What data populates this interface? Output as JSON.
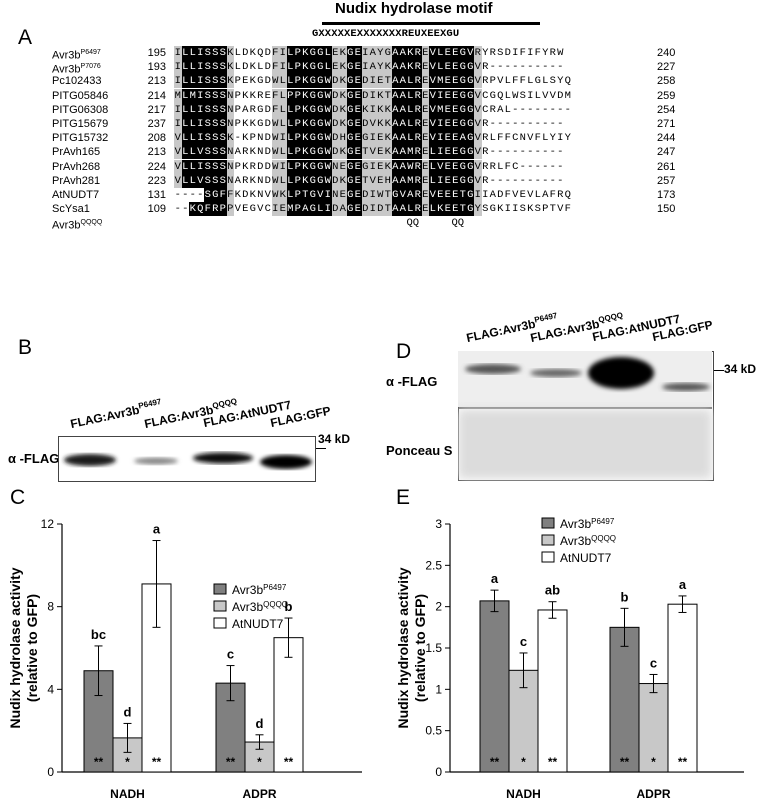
{
  "panelA": {
    "letter": "A",
    "motif_title": "Nudix hydrolase motif",
    "motif_consensus": "GXXXXXEXXXXXXXREUXEEXGU",
    "rows": [
      {
        "name": "Avr3b",
        "sup": "P6497",
        "start": "195",
        "seq": "ILLISSSKLDKQDFILPKGGLEKGEIAYGAAKREVLEEGVRYRSDIFIFYRW",
        "end": "240"
      },
      {
        "name": "Avr3b",
        "sup": "P7076",
        "start": "193",
        "seq": "ILLISSSKLDKLDFILPKGGLEKGEIAYKAAKREVLEEGGVR----------",
        "end": "227"
      },
      {
        "name": "Pc102433",
        "sup": "",
        "start": "213",
        "seq": "ILLISSSKPEKGDWLLPKGGWDKGEDIETAALREVMEEGGVRPVLFFLGLSYQ",
        "end": "258"
      },
      {
        "name": "PITG05846",
        "sup": "",
        "start": "214",
        "seq": "MLMISSSNPKKREFLPPKGGWDKGEDIKTAALREVIEEGGVCGQLWSILVVDM",
        "end": "259"
      },
      {
        "name": "PITG06308",
        "sup": "",
        "start": "217",
        "seq": "ILLISSSNPARGDFLLPKGGWDKGEKIKKAALREVMEEGGVCRAL--------",
        "end": "254"
      },
      {
        "name": "PITG15679",
        "sup": "",
        "start": "237",
        "seq": "ILLISSSNPKKGDWLLPKGGWDKGEDVKKAALREVIEEGGVR----------",
        "end": "271"
      },
      {
        "name": "PITG15732",
        "sup": "",
        "start": "208",
        "seq": "VLLISSSK-KPNDWILPKGGWDHGEGIEKAALREVIEEAGVRLFFCNVFLYIY",
        "end": "244"
      },
      {
        "name": "PrAvh165",
        "sup": "",
        "start": "213",
        "seq": "VLLVSSSNARKNDWLLPKGGWDKGETVEKAAMRELIEEGGVR----------",
        "end": "247"
      },
      {
        "name": "PrAvh268",
        "sup": "",
        "start": "224",
        "seq": "VLLISSSNPKRDDWILPKGGWNEGEGIEKAAWRELVEEGGVRRLFC------",
        "end": "261"
      },
      {
        "name": "PrAvh281",
        "sup": "",
        "start": "223",
        "seq": "VLLVSSSNARKNDWLLPKGGWDKGETVEHAAMRELIEEGGVR----------",
        "end": "257"
      },
      {
        "name": "AtNUDT7",
        "sup": "",
        "start": "131",
        "seq": "----SGFFKDKNVWKLPTGVINEGEDIWTGVAREVEEETGIIADFVEVLAFRQ",
        "end": "173"
      },
      {
        "name": "ScYsa1",
        "sup": "",
        "start": "109",
        "seq": "--KQFRPPVEGVCIEMPAGLIDAGEDIDTAALRELKEETGYSGKIISKSPTVF",
        "end": "150"
      },
      {
        "name": "Avr3b",
        "sup": "QQQQ",
        "start": "",
        "seq": "",
        "end": ""
      }
    ],
    "qqqq_marks": [
      "QQ",
      "QQ"
    ]
  },
  "panelB": {
    "letter": "B",
    "lanes": [
      {
        "label": "FLAG:Avr3b",
        "sup": "P6497"
      },
      {
        "label": "FLAG:Avr3b",
        "sup": "QQQQ"
      },
      {
        "label": "FLAG:AtNUDT7",
        "sup": ""
      },
      {
        "label": "FLAG:GFP",
        "sup": ""
      }
    ],
    "row_label": "α -FLAG",
    "marker": "34 kD"
  },
  "panelD": {
    "letter": "D",
    "lanes": [
      {
        "label": "FLAG:Avr3b",
        "sup": "P6497"
      },
      {
        "label": "FLAG:Avr3b",
        "sup": "QQQQ"
      },
      {
        "label": "FLAG:AtNUDT7",
        "sup": ""
      },
      {
        "label": "FLAG:GFP",
        "sup": ""
      }
    ],
    "row_labels": [
      "α -FLAG",
      "Ponceau S"
    ],
    "marker": "34 kD"
  },
  "chart_data": [
    {
      "panel": "C",
      "type": "bar",
      "ylabel": "Nudix hydrolase activity\n(relative to GFP)",
      "ylim": [
        0,
        12
      ],
      "yticks": [
        0,
        4,
        8,
        12
      ],
      "categories": [
        "NADH",
        "ADPR"
      ],
      "series": [
        {
          "name": "Avr3b",
          "sup": "P6497",
          "color": "#808080",
          "values": [
            4.9,
            4.3
          ],
          "errors": [
            1.2,
            0.85
          ],
          "letters": [
            "bc",
            "c"
          ],
          "stars": [
            "**",
            "**"
          ]
        },
        {
          "name": "Avr3b",
          "sup": "QQQQ",
          "color": "#c8c8c8",
          "values": [
            1.65,
            1.45
          ],
          "errors": [
            0.7,
            0.35
          ],
          "letters": [
            "d",
            "d"
          ],
          "stars": [
            "*",
            "*"
          ]
        },
        {
          "name": "AtNUDT7",
          "sup": "",
          "color": "#ffffff",
          "values": [
            9.1,
            6.5
          ],
          "errors": [
            2.1,
            0.95
          ],
          "letters": [
            "a",
            "b"
          ],
          "stars": [
            "**",
            "**"
          ]
        }
      ],
      "legend": "top-right"
    },
    {
      "panel": "E",
      "type": "bar",
      "ylabel": "Nudix hydrolase activity\n(relative to GFP)",
      "ylim": [
        0,
        3
      ],
      "yticks": [
        0,
        0.5,
        1,
        1.5,
        2,
        2.5,
        3
      ],
      "categories": [
        "NADH",
        "ADPR"
      ],
      "series": [
        {
          "name": "Avr3b",
          "sup": "P6497",
          "color": "#808080",
          "values": [
            2.07,
            1.75
          ],
          "errors": [
            0.13,
            0.23
          ],
          "letters": [
            "a",
            "b"
          ],
          "stars": [
            "**",
            "**"
          ]
        },
        {
          "name": "Avr3b",
          "sup": "QQQQ",
          "color": "#c8c8c8",
          "values": [
            1.23,
            1.07
          ],
          "errors": [
            0.21,
            0.11
          ],
          "letters": [
            "c",
            "c"
          ],
          "stars": [
            "*",
            "*"
          ]
        },
        {
          "name": "AtNUDT7",
          "sup": "",
          "color": "#ffffff",
          "values": [
            1.96,
            2.03
          ],
          "errors": [
            0.1,
            0.1
          ],
          "letters": [
            "ab",
            "a"
          ],
          "stars": [
            "**",
            "**"
          ]
        }
      ],
      "legend": "top-right"
    }
  ]
}
